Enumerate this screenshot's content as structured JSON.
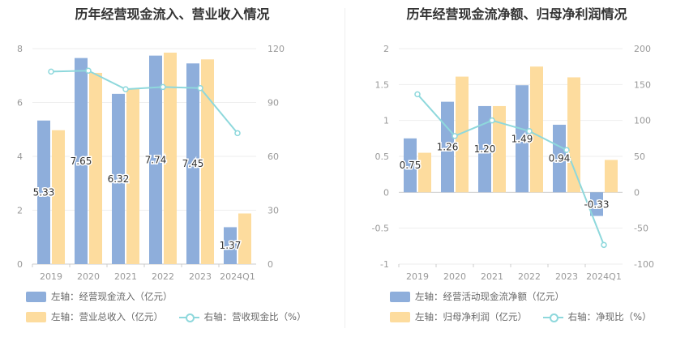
{
  "colors": {
    "blue": "#8eaedb",
    "orange": "#fddc9e",
    "teal": "#8ed8dc",
    "axis": "#999999",
    "grid": "#eeeeee"
  },
  "chart_data": [
    {
      "type": "bar",
      "title": "历年经营现金流入、营业收入情况",
      "categories": [
        "2019",
        "2020",
        "2021",
        "2022",
        "2023",
        "2024Q1"
      ],
      "left_axis": {
        "min": 0,
        "max": 8,
        "ticks": [
          0,
          2,
          4,
          6,
          8
        ]
      },
      "right_axis": {
        "min": 0,
        "max": 120,
        "ticks": [
          0,
          30,
          60,
          90,
          120
        ]
      },
      "series": [
        {
          "name": "左轴：经营现金流入（亿元）",
          "axis": "left",
          "type": "bar",
          "color": "#8eaedb",
          "values": [
            5.33,
            7.65,
            6.32,
            7.74,
            7.45,
            1.37
          ],
          "labels": [
            "5.33",
            "7.65",
            "6.32",
            "7.74",
            "7.45",
            "1.37"
          ]
        },
        {
          "name": "左轴：营业总收入（亿元）",
          "axis": "left",
          "type": "bar",
          "color": "#fddc9e",
          "values": [
            4.97,
            7.1,
            6.5,
            7.85,
            7.6,
            1.88
          ]
        },
        {
          "name": "右轴：营收现金比（%）",
          "axis": "right",
          "type": "line",
          "color": "#8ed8dc",
          "values": [
            107.2,
            107.7,
            97.4,
            98.6,
            98.0,
            72.9
          ]
        }
      ],
      "legend": {
        "placement": "bottom"
      }
    },
    {
      "type": "bar",
      "title": "历年经营现金流净额、归母净利润情况",
      "categories": [
        "2019",
        "2020",
        "2021",
        "2022",
        "2023",
        "2024Q1"
      ],
      "left_axis": {
        "min": -1,
        "max": 2,
        "ticks": [
          -1,
          -0.5,
          0,
          0.5,
          1,
          1.5,
          2
        ]
      },
      "right_axis": {
        "min": -100,
        "max": 200,
        "ticks": [
          -100,
          -50,
          0,
          50,
          100,
          150,
          200
        ]
      },
      "series": [
        {
          "name": "左轴：经营活动现金流净额（亿元）",
          "axis": "left",
          "type": "bar",
          "color": "#8eaedb",
          "values": [
            0.75,
            1.26,
            1.2,
            1.49,
            0.94,
            -0.33
          ],
          "labels": [
            "0.75",
            "1.26",
            "1.20",
            "1.49",
            "0.94",
            "-0.33"
          ]
        },
        {
          "name": "左轴：归母净利润（亿元）",
          "axis": "left",
          "type": "bar",
          "color": "#fddc9e",
          "values": [
            0.55,
            1.61,
            1.2,
            1.75,
            1.6,
            0.45
          ]
        },
        {
          "name": "右轴：净现比（%）",
          "axis": "right",
          "type": "line",
          "color": "#8ed8dc",
          "values": [
            136.4,
            78.3,
            100.0,
            85.1,
            58.8,
            -73.3
          ]
        }
      ],
      "legend": {
        "placement": "bottom"
      }
    }
  ]
}
